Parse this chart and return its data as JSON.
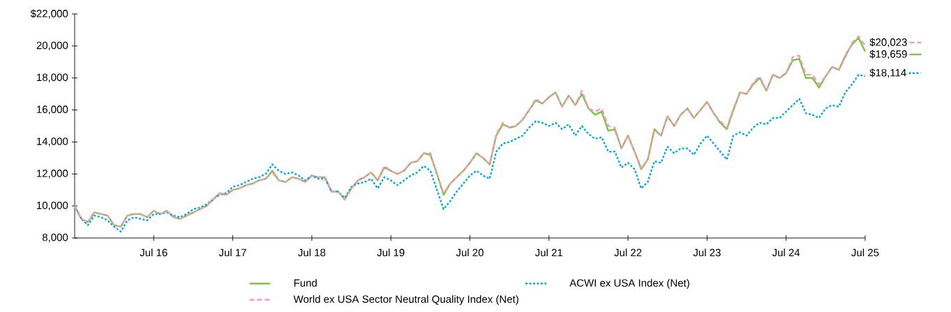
{
  "chart_data": {
    "type": "line",
    "x": [
      "2015-07",
      "2015-08",
      "2015-09",
      "2015-10",
      "2015-11",
      "2015-12",
      "2016-01",
      "2016-02",
      "2016-03",
      "2016-04",
      "2016-05",
      "2016-06",
      "2016-07",
      "2016-08",
      "2016-09",
      "2016-10",
      "2016-11",
      "2016-12",
      "2017-01",
      "2017-02",
      "2017-03",
      "2017-04",
      "2017-05",
      "2017-06",
      "2017-07",
      "2017-08",
      "2017-09",
      "2017-10",
      "2017-11",
      "2017-12",
      "2018-01",
      "2018-02",
      "2018-03",
      "2018-04",
      "2018-05",
      "2018-06",
      "2018-07",
      "2018-08",
      "2018-09",
      "2018-10",
      "2018-11",
      "2018-12",
      "2019-01",
      "2019-02",
      "2019-03",
      "2019-04",
      "2019-05",
      "2019-06",
      "2019-07",
      "2019-08",
      "2019-09",
      "2019-10",
      "2019-11",
      "2019-12",
      "2020-01",
      "2020-02",
      "2020-03",
      "2020-04",
      "2020-05",
      "2020-06",
      "2020-07",
      "2020-08",
      "2020-09",
      "2020-10",
      "2020-11",
      "2020-12",
      "2021-01",
      "2021-02",
      "2021-03",
      "2021-04",
      "2021-05",
      "2021-06",
      "2021-07",
      "2021-08",
      "2021-09",
      "2021-10",
      "2021-11",
      "2021-12",
      "2022-01",
      "2022-02",
      "2022-03",
      "2022-04",
      "2022-05",
      "2022-06",
      "2022-07",
      "2022-08",
      "2022-09",
      "2022-10",
      "2022-11",
      "2022-12",
      "2023-01",
      "2023-02",
      "2023-03",
      "2023-04",
      "2023-05",
      "2023-06",
      "2023-07",
      "2023-08",
      "2023-09",
      "2023-10",
      "2023-11",
      "2023-12",
      "2024-01",
      "2024-02",
      "2024-03",
      "2024-04",
      "2024-05",
      "2024-06",
      "2024-07",
      "2024-08",
      "2024-09",
      "2024-10",
      "2024-11",
      "2024-12",
      "2025-01",
      "2025-02",
      "2025-03",
      "2025-04",
      "2025-05",
      "2025-06",
      "2025-07"
    ],
    "series": [
      {
        "name": "Fund",
        "color": "#7dc242",
        "line_style": "solid",
        "values": [
          10000,
          9200,
          9000,
          9600,
          9500,
          9400,
          8800,
          8700,
          9400,
          9500,
          9500,
          9300,
          9700,
          9500,
          9700,
          9300,
          9200,
          9400,
          9600,
          9800,
          10000,
          10400,
          10800,
          10700,
          11000,
          11100,
          11300,
          11400,
          11600,
          11700,
          12200,
          11600,
          11500,
          11800,
          11700,
          11500,
          11900,
          11800,
          11800,
          10900,
          10900,
          10400,
          11100,
          11600,
          11800,
          12100,
          11600,
          12400,
          12200,
          12000,
          12200,
          12700,
          12800,
          13300,
          13200,
          12000,
          10700,
          11400,
          11800,
          12200,
          12700,
          13300,
          13000,
          12600,
          14400,
          15100,
          14900,
          15000,
          15400,
          16000,
          16600,
          16400,
          16800,
          17100,
          16200,
          16900,
          16300,
          17000,
          16100,
          15700,
          15900,
          14700,
          14800,
          13600,
          14400,
          13400,
          12300,
          12900,
          14800,
          14400,
          15600,
          15000,
          15700,
          16100,
          15500,
          16000,
          16500,
          15800,
          15200,
          14800,
          16000,
          17100,
          17000,
          17600,
          18000,
          17200,
          18200,
          18000,
          18300,
          19100,
          19200,
          18000,
          18000,
          17400,
          18100,
          18700,
          18500,
          19400,
          20100,
          20500,
          19659
        ],
        "value_labels": [
          null,
          null,
          null,
          null,
          null,
          null,
          null,
          null,
          null,
          null,
          null,
          null,
          null,
          null,
          null,
          null,
          null,
          null,
          null,
          null,
          null,
          null,
          null,
          null,
          null,
          null,
          null,
          null,
          null,
          null,
          null,
          null,
          null,
          null,
          null,
          null,
          null,
          null,
          null,
          null,
          null,
          null,
          null,
          null,
          null,
          null,
          null,
          null,
          null,
          null,
          null,
          null,
          null,
          null,
          null,
          null,
          null,
          null,
          null,
          null,
          null,
          null,
          null,
          null,
          null,
          null,
          null,
          null,
          null,
          null,
          null,
          null,
          null,
          null,
          null,
          null,
          null,
          null,
          null,
          null,
          null,
          null,
          null,
          null,
          null,
          null,
          null,
          null,
          null,
          null,
          null,
          null,
          null,
          null,
          null,
          null,
          null,
          null,
          null,
          null,
          null,
          null,
          null,
          null,
          null,
          null,
          null,
          null,
          null,
          null,
          null,
          null,
          null,
          null,
          null,
          null,
          null,
          null,
          null,
          null,
          "$19,659"
        ]
      },
      {
        "name": "ACWI ex USA Index (Net)",
        "color": "#00a9e0",
        "line_style": "dotted",
        "values": [
          10000,
          9200,
          8800,
          9400,
          9300,
          9100,
          8700,
          8400,
          9100,
          9300,
          9200,
          9100,
          9500,
          9500,
          9600,
          9400,
          9300,
          9500,
          9800,
          9900,
          10100,
          10400,
          10700,
          10800,
          11200,
          11300,
          11500,
          11700,
          11800,
          12000,
          12600,
          12200,
          12000,
          12100,
          11900,
          11600,
          11900,
          11700,
          11700,
          10900,
          10900,
          10500,
          11200,
          11400,
          11500,
          11700,
          11100,
          11800,
          11600,
          11300,
          11600,
          11900,
          12100,
          12500,
          12200,
          11000,
          9800,
          10300,
          10900,
          11400,
          11900,
          12200,
          11900,
          11700,
          13400,
          13900,
          14000,
          14200,
          14400,
          14900,
          15300,
          15200,
          15000,
          15200,
          14800,
          15100,
          14400,
          15000,
          14500,
          14200,
          14300,
          13400,
          13400,
          12400,
          12700,
          12300,
          11100,
          11500,
          12800,
          12700,
          13700,
          13300,
          13600,
          13600,
          13200,
          13900,
          14400,
          13900,
          13400,
          12900,
          14400,
          14600,
          14400,
          14900,
          15200,
          15100,
          15500,
          15500,
          15900,
          16300,
          16700,
          15800,
          15700,
          15500,
          16100,
          16300,
          16200,
          17100,
          17600,
          18200,
          18114
        ],
        "value_labels": [
          null,
          null,
          null,
          null,
          null,
          null,
          null,
          null,
          null,
          null,
          null,
          null,
          null,
          null,
          null,
          null,
          null,
          null,
          null,
          null,
          null,
          null,
          null,
          null,
          null,
          null,
          null,
          null,
          null,
          null,
          null,
          null,
          null,
          null,
          null,
          null,
          null,
          null,
          null,
          null,
          null,
          null,
          null,
          null,
          null,
          null,
          null,
          null,
          null,
          null,
          null,
          null,
          null,
          null,
          null,
          null,
          null,
          null,
          null,
          null,
          null,
          null,
          null,
          null,
          null,
          null,
          null,
          null,
          null,
          null,
          null,
          null,
          null,
          null,
          null,
          null,
          null,
          null,
          null,
          null,
          null,
          null,
          null,
          null,
          null,
          null,
          null,
          null,
          null,
          null,
          null,
          null,
          null,
          null,
          null,
          null,
          null,
          null,
          null,
          null,
          null,
          null,
          null,
          null,
          null,
          null,
          null,
          null,
          null,
          null,
          null,
          null,
          null,
          null,
          null,
          null,
          null,
          null,
          null,
          null,
          "$18,114"
        ]
      },
      {
        "name": "World ex USA Sector Neutral Quality Index (Net)",
        "color": "#f49ac1",
        "line_style": "dashed",
        "values": [
          10000,
          9200,
          9000,
          9600,
          9500,
          9400,
          8800,
          8700,
          9400,
          9500,
          9500,
          9300,
          9700,
          9500,
          9700,
          9300,
          9200,
          9400,
          9600,
          9800,
          10000,
          10400,
          10800,
          10700,
          11000,
          11100,
          11300,
          11400,
          11600,
          11700,
          12100,
          11600,
          11500,
          11800,
          11700,
          11500,
          11900,
          11800,
          11800,
          10900,
          10900,
          10400,
          11100,
          11600,
          11800,
          12100,
          11600,
          12500,
          12200,
          12000,
          12200,
          12700,
          12800,
          13300,
          13300,
          12000,
          10800,
          11400,
          11800,
          12200,
          12700,
          13300,
          13000,
          12600,
          14500,
          15200,
          14900,
          15000,
          15400,
          16000,
          16700,
          16400,
          16800,
          17100,
          16200,
          16900,
          16300,
          17200,
          16100,
          15900,
          16100,
          15000,
          14900,
          13600,
          14400,
          13400,
          12400,
          12900,
          14700,
          14400,
          15600,
          15000,
          15700,
          16100,
          15500,
          16000,
          16500,
          15800,
          15300,
          14900,
          16100,
          17100,
          17000,
          17700,
          18100,
          17200,
          18200,
          18000,
          18300,
          19300,
          19400,
          18200,
          18200,
          17600,
          18100,
          18700,
          18500,
          19300,
          20200,
          20600,
          20023
        ],
        "value_labels": [
          null,
          null,
          null,
          null,
          null,
          null,
          null,
          null,
          null,
          null,
          null,
          null,
          null,
          null,
          null,
          null,
          null,
          null,
          null,
          null,
          null,
          null,
          null,
          null,
          null,
          null,
          null,
          null,
          null,
          null,
          null,
          null,
          null,
          null,
          null,
          null,
          null,
          null,
          null,
          null,
          null,
          null,
          null,
          null,
          null,
          null,
          null,
          null,
          null,
          null,
          null,
          null,
          null,
          null,
          null,
          null,
          null,
          null,
          null,
          null,
          null,
          null,
          null,
          null,
          null,
          null,
          null,
          null,
          null,
          null,
          null,
          null,
          null,
          null,
          null,
          null,
          null,
          null,
          null,
          null,
          null,
          null,
          null,
          null,
          null,
          null,
          null,
          null,
          null,
          null,
          null,
          null,
          null,
          null,
          null,
          null,
          null,
          null,
          null,
          null,
          null,
          null,
          null,
          null,
          null,
          null,
          null,
          null,
          null,
          null,
          null,
          null,
          null,
          null,
          null,
          null,
          null,
          null,
          null,
          null,
          "$20,023"
        ]
      }
    ],
    "xlim": [
      "2015-07",
      "2025-07"
    ],
    "xticks": [
      {
        "value": "2016-07",
        "label": "Jul 16"
      },
      {
        "value": "2017-07",
        "label": "Jul 17"
      },
      {
        "value": "2018-07",
        "label": "Jul 18"
      },
      {
        "value": "2019-07",
        "label": "Jul 19"
      },
      {
        "value": "2020-07",
        "label": "Jul 20"
      },
      {
        "value": "2021-07",
        "label": "Jul 21"
      },
      {
        "value": "2022-07",
        "label": "Jul 22"
      },
      {
        "value": "2023-07",
        "label": "Jul 23"
      },
      {
        "value": "2024-07",
        "label": "Jul 24"
      },
      {
        "value": "2025-07",
        "label": "Jul 25"
      }
    ],
    "ylim": [
      8000,
      22000
    ],
    "yticks": [
      {
        "value": 8000,
        "label": "8,000"
      },
      {
        "value": 10000,
        "label": "10,000"
      },
      {
        "value": 12000,
        "label": "12,000"
      },
      {
        "value": 14000,
        "label": "14,000"
      },
      {
        "value": 16000,
        "label": "16,000"
      },
      {
        "value": 18000,
        "label": "18,000"
      },
      {
        "value": 20000,
        "label": "20,000"
      },
      {
        "value": 22000,
        "label": "$22,000"
      }
    ],
    "grid": false,
    "legend": "bottom"
  }
}
